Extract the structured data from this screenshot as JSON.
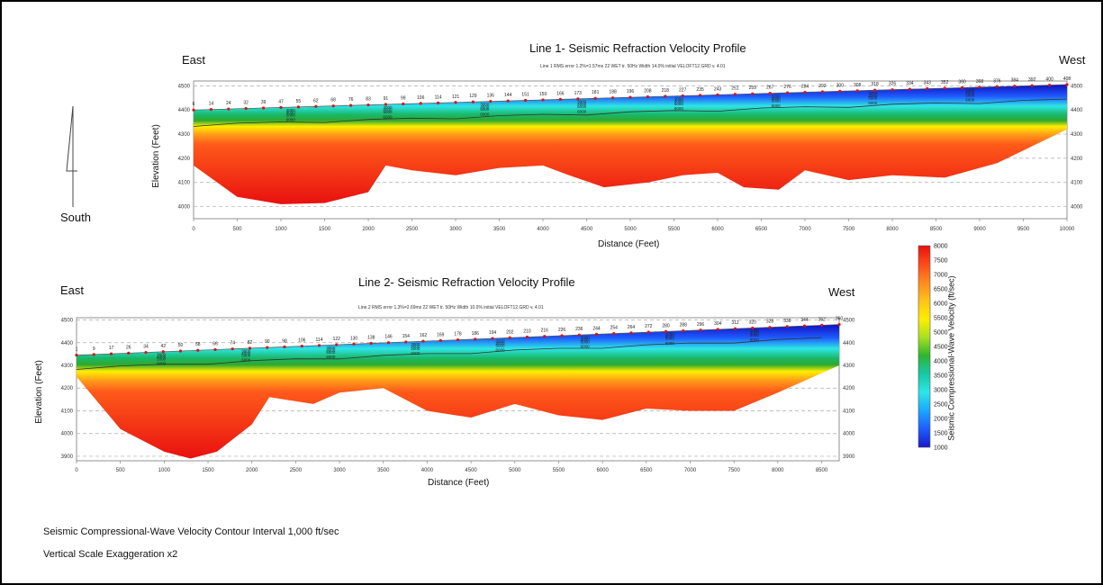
{
  "chart_data": [
    {
      "type": "heatmap",
      "title": "Line 1- Seismic Refraction Velocity Profile",
      "subtitle": "Line 1 RMS error 1.2%=1.57ms 22 WET tr. 50Hz Width 14.0% initial VELOFT12.GRD v. 4.01",
      "left_direction": "East",
      "right_direction": "West",
      "xlabel": "Distance (Feet)",
      "ylabel": "Elevation (Feet)",
      "xlim": [
        0,
        10000
      ],
      "ylim": [
        3950,
        4520
      ],
      "x_ticks": [
        0,
        500,
        1000,
        1500,
        2000,
        2500,
        3000,
        3500,
        4000,
        4500,
        5000,
        5500,
        6000,
        6500,
        7000,
        7500,
        8000,
        8500,
        9000,
        9500,
        10000
      ],
      "y_ticks": [
        4000,
        4100,
        4200,
        4300,
        4400,
        4500
      ],
      "grid": "dashed horizontal",
      "stations": [
        "6",
        "14",
        "24",
        "32",
        "39",
        "47",
        "55",
        "62",
        "68",
        "76",
        "83",
        "91",
        "99",
        "106",
        "114",
        "121",
        "129",
        "136",
        "144",
        "151",
        "159",
        "166",
        "173",
        "181",
        "188",
        "196",
        "208",
        "218",
        "227",
        "235",
        "243",
        "251",
        "259",
        "267",
        "276",
        "284",
        "292",
        "300",
        "308",
        "318",
        "326",
        "334",
        "343",
        "352",
        "360",
        "368",
        "376",
        "384",
        "392",
        "400",
        "408"
      ],
      "surface": [
        [
          0,
          4400
        ],
        [
          10000,
          4505
        ]
      ],
      "refractor_depths": [
        [
          0,
          4170
        ],
        [
          500,
          4040
        ],
        [
          1000,
          4010
        ],
        [
          1500,
          4015
        ],
        [
          2000,
          4060
        ],
        [
          2200,
          4170
        ],
        [
          2500,
          4150
        ],
        [
          3000,
          4130
        ],
        [
          3500,
          4160
        ],
        [
          4000,
          4170
        ],
        [
          4300,
          4130
        ],
        [
          4700,
          4080
        ],
        [
          5200,
          4100
        ],
        [
          5600,
          4130
        ],
        [
          6000,
          4140
        ],
        [
          6300,
          4080
        ],
        [
          6700,
          4070
        ],
        [
          7000,
          4150
        ],
        [
          7500,
          4110
        ],
        [
          8000,
          4130
        ],
        [
          8600,
          4120
        ],
        [
          9200,
          4180
        ],
        [
          10000,
          4320
        ]
      ],
      "contour_labels": [
        "3000",
        "4000",
        "5000",
        "6000"
      ]
    },
    {
      "type": "heatmap",
      "title": "Line 2- Seismic Refraction Velocity Profile",
      "subtitle": "Line 2 RMS error 1.3%=2.69ms 22 WET tr. 50Hz Width 10.0% initial VELOFT12.GRD v. 4.01",
      "left_direction": "East",
      "right_direction": "West",
      "xlabel": "Distance (Feet)",
      "ylabel": "Elevation (Feet)",
      "xlim": [
        0,
        8700
      ],
      "ylim": [
        3880,
        4510
      ],
      "x_ticks": [
        0,
        500,
        1000,
        1500,
        2000,
        2500,
        3000,
        3500,
        4000,
        4500,
        5000,
        5500,
        6000,
        6500,
        7000,
        7500,
        8000,
        8500
      ],
      "y_ticks": [
        3900,
        4000,
        4100,
        4200,
        4300,
        4400,
        4500
      ],
      "grid": "dashed horizontal",
      "stations": [
        "1",
        "9",
        "17",
        "26",
        "34",
        "42",
        "50",
        "58",
        "66",
        "74",
        "82",
        "90",
        "98",
        "106",
        "114",
        "122",
        "130",
        "138",
        "146",
        "154",
        "162",
        "169",
        "178",
        "186",
        "194",
        "202",
        "210",
        "216",
        "226",
        "236",
        "244",
        "254",
        "264",
        "272",
        "280",
        "288",
        "296",
        "304",
        "312",
        "320",
        "328",
        "336",
        "344",
        "352",
        "360"
      ],
      "surface": [
        [
          0,
          4345
        ],
        [
          8700,
          4480
        ]
      ],
      "refractor_depths": [
        [
          0,
          4250
        ],
        [
          500,
          4020
        ],
        [
          1000,
          3920
        ],
        [
          1300,
          3890
        ],
        [
          1600,
          3920
        ],
        [
          2000,
          4040
        ],
        [
          2200,
          4160
        ],
        [
          2700,
          4130
        ],
        [
          3000,
          4180
        ],
        [
          3500,
          4200
        ],
        [
          4000,
          4100
        ],
        [
          4500,
          4070
        ],
        [
          5000,
          4130
        ],
        [
          5500,
          4080
        ],
        [
          6000,
          4060
        ],
        [
          6500,
          4110
        ],
        [
          7000,
          4100
        ],
        [
          7500,
          4100
        ],
        [
          8000,
          4180
        ],
        [
          8700,
          4300
        ]
      ],
      "contour_labels": [
        "3000",
        "4000",
        "5000",
        "6000"
      ]
    }
  ],
  "colorbar": {
    "label": "Seismic Compressional-Wave Velocity (ft/sec)",
    "ticks": [
      "8000",
      "7500",
      "7000",
      "6500",
      "6000",
      "5500",
      "5000",
      "4500",
      "4000",
      "3500",
      "3000",
      "2500",
      "2000",
      "1500",
      "1000"
    ],
    "colors": [
      "#e81010",
      "#ff4a1a",
      "#ff8a1f",
      "#ffc21a",
      "#ffee00",
      "#a8e020",
      "#2fb52f",
      "#14c8a8",
      "#2ee6e6",
      "#1aa7ff",
      "#1f5cff",
      "#1818c8"
    ]
  },
  "compass": {
    "label": "South"
  },
  "footer": {
    "line1": "Seismic Compressional-Wave Velocity Contour Interval 1,000 ft/sec",
    "line2": "Vertical Scale Exaggeration x2"
  }
}
